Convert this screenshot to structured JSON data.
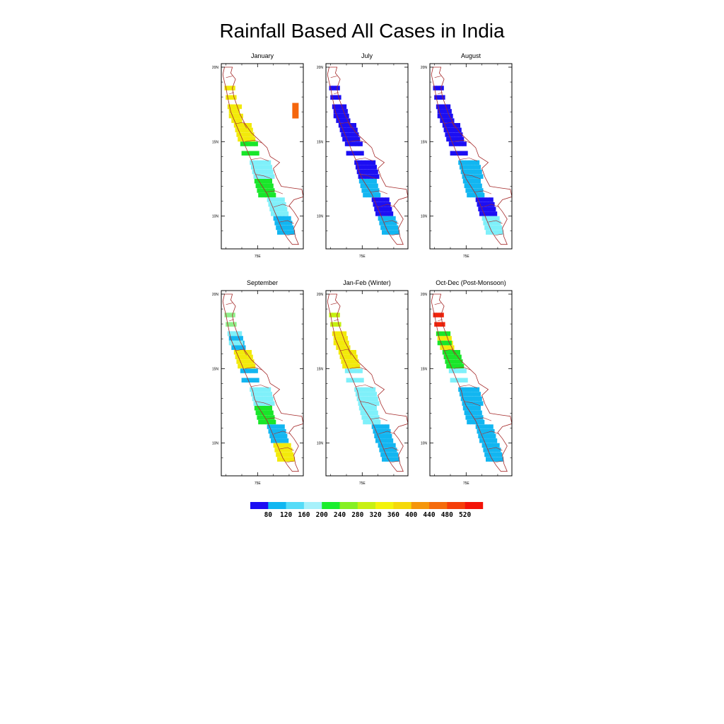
{
  "title": "Rainfall Based All Cases in India",
  "panels": [
    {
      "title": "January",
      "coast": [
        [
          "dots",
          2,
          1,
          "yellow"
        ],
        [
          "grid",
          3,
          1,
          "yellow"
        ],
        [
          "rect",
          16,
          2,
          "orange"
        ],
        [
          "dots",
          3,
          2,
          "yellow"
        ],
        [
          "grid",
          4,
          3,
          "yellow"
        ],
        [
          "dots",
          5,
          3,
          "green"
        ],
        [
          "grid",
          6,
          4,
          "cyan"
        ],
        [
          "grid",
          7,
          3,
          "green"
        ],
        [
          "grid",
          8,
          3,
          "cyan"
        ],
        [
          "grid",
          9,
          3,
          "skyblue"
        ]
      ]
    },
    {
      "title": "July",
      "coast": [
        [
          "dots",
          2,
          1,
          "blue"
        ],
        [
          "grid",
          3,
          2,
          "blue"
        ],
        [
          "dots",
          3,
          2,
          "blue"
        ],
        [
          "grid",
          4,
          3,
          "blue"
        ],
        [
          "dots",
          5,
          3,
          "blue"
        ],
        [
          "grid",
          6,
          4,
          "blue"
        ],
        [
          "grid",
          7,
          3,
          "skyblue"
        ],
        [
          "grid",
          8,
          3,
          "blue"
        ],
        [
          "grid",
          9,
          3,
          "skyblue"
        ]
      ]
    },
    {
      "title": "August",
      "coast": [
        [
          "dots",
          2,
          1,
          "blue"
        ],
        [
          "grid",
          3,
          2,
          "blue"
        ],
        [
          "dots",
          3,
          2,
          "blue"
        ],
        [
          "grid",
          4,
          3,
          "blue"
        ],
        [
          "dots",
          5,
          3,
          "blue"
        ],
        [
          "grid",
          6,
          4,
          "skyblue"
        ],
        [
          "grid",
          7,
          3,
          "skyblue"
        ],
        [
          "grid",
          8,
          3,
          "blue"
        ],
        [
          "grid",
          9,
          3,
          "cyan"
        ]
      ]
    },
    {
      "title": "September",
      "coast": [
        [
          "dots",
          2,
          1,
          "lightgreen"
        ],
        [
          "grid",
          3,
          2,
          "skyblue"
        ],
        [
          "dots",
          3,
          2,
          "cyan"
        ],
        [
          "grid",
          4,
          3,
          "yellow"
        ],
        [
          "dots",
          5,
          3,
          "skyblue"
        ],
        [
          "grid",
          6,
          4,
          "cyan"
        ],
        [
          "grid",
          7,
          3,
          "green"
        ],
        [
          "grid",
          8,
          3,
          "skyblue"
        ],
        [
          "grid",
          9,
          3,
          "yellow"
        ]
      ]
    },
    {
      "title": "Jan-Feb (Winter)",
      "coast": [
        [
          "dots",
          2,
          1,
          "yellowgreen"
        ],
        [
          "grid",
          3,
          2,
          "yellow"
        ],
        [
          "dots",
          3,
          2,
          "yellow"
        ],
        [
          "grid",
          4,
          3,
          "yellow"
        ],
        [
          "dots",
          5,
          3,
          "cyan"
        ],
        [
          "grid",
          6,
          4,
          "cyan"
        ],
        [
          "grid",
          7,
          3,
          "cyan"
        ],
        [
          "grid",
          8,
          3,
          "skyblue"
        ],
        [
          "grid",
          9,
          3,
          "skyblue"
        ]
      ]
    },
    {
      "title": "Oct-Dec (Post-Monsoon)",
      "coast": [
        [
          "dots",
          2,
          1,
          "red"
        ],
        [
          "grid",
          3,
          2,
          "yellow"
        ],
        [
          "dots",
          3,
          2,
          "green"
        ],
        [
          "grid",
          4,
          3,
          "green"
        ],
        [
          "dots",
          5,
          3,
          "cyan"
        ],
        [
          "grid",
          6,
          4,
          "skyblue"
        ],
        [
          "grid",
          7,
          3,
          "skyblue"
        ],
        [
          "grid",
          8,
          3,
          "skyblue"
        ],
        [
          "grid",
          9,
          3,
          "skyblue"
        ]
      ]
    }
  ],
  "axes": {
    "y_ticks": [
      "20N",
      "15N",
      "10N"
    ],
    "x_ticks": [
      "75E"
    ]
  },
  "colorbar": {
    "colors": [
      "#1c0ef3",
      "#0fb7f2",
      "#55dcf8",
      "#a7f1fb",
      "#1aee2d",
      "#86f022",
      "#c8f012",
      "#f3f30b",
      "#f5d90a",
      "#f5960b",
      "#f56b0c",
      "#f53e0a",
      "#f31308"
    ],
    "labels": [
      "80",
      "120",
      "160",
      "200",
      "240",
      "280",
      "320",
      "360",
      "400",
      "440",
      "480",
      "520"
    ]
  },
  "palette": {
    "blue": "#1c0ef3",
    "skyblue": "#12b6f1",
    "cyan": "#7ff0fa",
    "green": "#19e62a",
    "lightgreen": "#8ef08a",
    "yellowgreen": "#c5f012",
    "yellow": "#f2ea0b",
    "orange": "#f5660c",
    "red": "#f3230a",
    "border": "#a52a2a"
  }
}
